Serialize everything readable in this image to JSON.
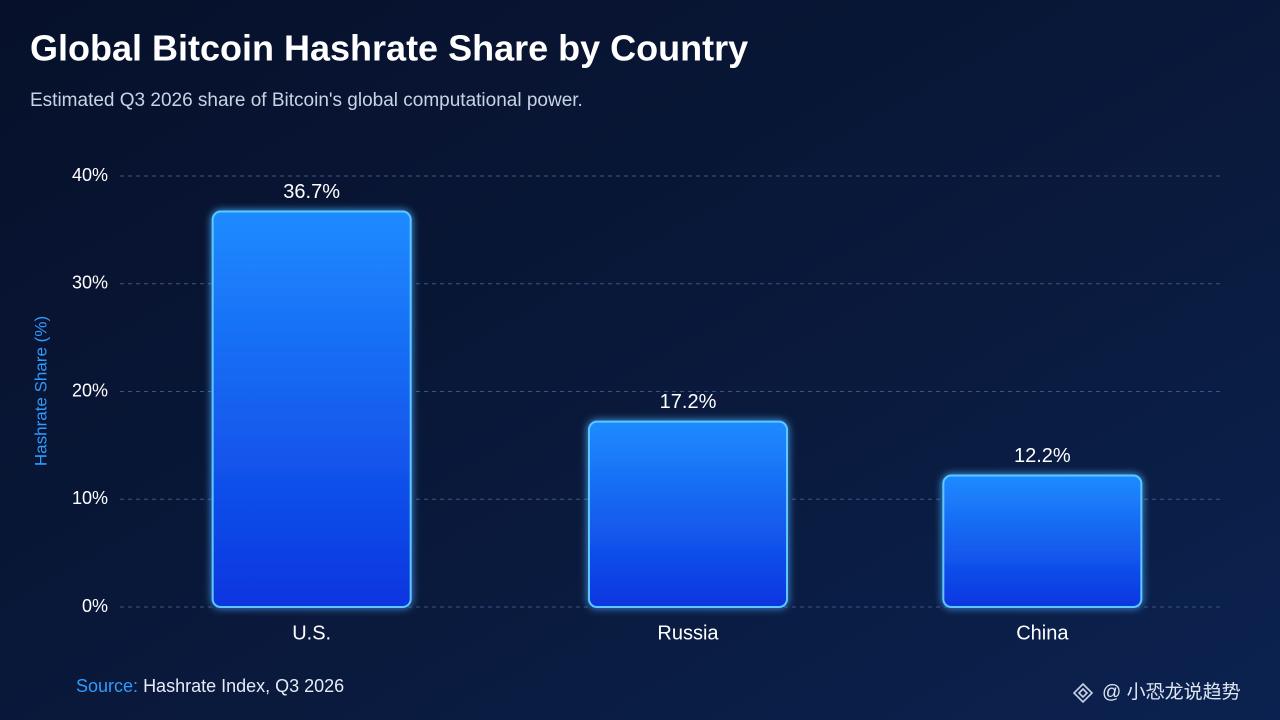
{
  "chart_data": {
    "type": "bar",
    "title": "Global Bitcoin Hashrate Share by Country",
    "subtitle": "Estimated Q3 2026 share of Bitcoin's global computational power.",
    "y_axis_label": "Hashrate Share (%)",
    "categories": [
      "U.S.",
      "Russia",
      "China"
    ],
    "values": [
      36.7,
      17.2,
      12.2
    ],
    "value_labels": [
      "36.7%",
      "17.2%",
      "12.2%"
    ],
    "color": "#1a6cff",
    "ylim": [
      0,
      40
    ],
    "yticks": [
      {
        "value": 0,
        "label": "0%"
      },
      {
        "value": 10,
        "label": "10%"
      },
      {
        "value": 20,
        "label": "20%"
      },
      {
        "value": 30,
        "label": "30%"
      },
      {
        "value": 40,
        "label": "40%"
      }
    ],
    "grid": true,
    "source_label": "Source:",
    "source_text": "Hashrate Index, Q3 2026",
    "watermark": "@ 小恐龙说趋势"
  }
}
